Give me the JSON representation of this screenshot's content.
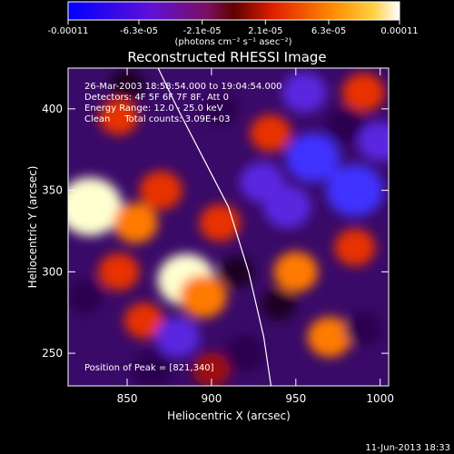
{
  "colorbar": {
    "tick_labels": [
      "-0.00011",
      "-6.3e-05",
      "-2.1e-05",
      "2.1e-05",
      "6.3e-05",
      "0.00011"
    ],
    "tick_values": [
      -0.00011,
      -6.3e-05,
      -2.1e-05,
      2.1e-05,
      6.3e-05,
      0.00011
    ],
    "range": [
      -0.00011,
      0.00011
    ],
    "units_label": "(photons cm⁻² s⁻¹ asec⁻²)",
    "colors": [
      "#1010ff",
      "#7a10e0",
      "#b01070",
      "#d82010",
      "#ff6a00",
      "#ffb000",
      "#ffffff"
    ]
  },
  "annotations": {
    "time_range": "26-Mar-2003 18:58:54.000 to 19:04:54.000",
    "detectors": "Detectors: 4F 5F 6F 7F 8F, Att 0",
    "energy_range": "Energy Range: 12.0 - 25.0 keV",
    "method": "Clean     Total counts: 3.09E+03",
    "peak": "Position of Peak = [821,340]"
  },
  "footer_date": "11-Jun-2013 18:33",
  "chart_data": {
    "type": "heatmap",
    "title": "Reconstructed RHESSI Image",
    "xlabel": "Heliocentric X (arcsec)",
    "ylabel": "Heliocentric Y (arcsec)",
    "xlim": [
      815,
      1005
    ],
    "ylim": [
      230,
      425
    ],
    "x_ticks": [
      850,
      900,
      950,
      1000
    ],
    "y_ticks": [
      250,
      300,
      350,
      400
    ],
    "x_tick_labels": [
      "850",
      "900",
      "950",
      "1000"
    ],
    "y_tick_labels": [
      "250",
      "300",
      "350",
      "400"
    ],
    "peak_position": [
      821,
      340
    ],
    "limb_curve": {
      "x": [
        866,
        880,
        895,
        910,
        922,
        931,
        936
      ],
      "y": [
        430,
        400,
        370,
        340,
        300,
        260,
        225
      ]
    },
    "blobs": [
      {
        "x": 828,
        "y": 340,
        "v": 0.00011
      },
      {
        "x": 885,
        "y": 295,
        "v": 9e-05
      },
      {
        "x": 895,
        "y": 285,
        "v": 6e-05
      },
      {
        "x": 855,
        "y": 330,
        "v": 5e-05
      },
      {
        "x": 870,
        "y": 350,
        "v": 4.5e-05
      },
      {
        "x": 845,
        "y": 300,
        "v": 4e-05
      },
      {
        "x": 860,
        "y": 270,
        "v": 3.5e-05
      },
      {
        "x": 905,
        "y": 330,
        "v": 4e-05
      },
      {
        "x": 950,
        "y": 300,
        "v": 5e-05
      },
      {
        "x": 985,
        "y": 315,
        "v": 4e-05
      },
      {
        "x": 970,
        "y": 260,
        "v": 5e-05
      },
      {
        "x": 935,
        "y": 385,
        "v": 4e-05
      },
      {
        "x": 845,
        "y": 395,
        "v": 3.5e-05
      },
      {
        "x": 990,
        "y": 410,
        "v": 4.5e-05
      },
      {
        "x": 900,
        "y": 240,
        "v": 3e-05
      },
      {
        "x": 960,
        "y": 370,
        "v": -8e-05
      },
      {
        "x": 985,
        "y": 350,
        "v": -9e-05
      },
      {
        "x": 945,
        "y": 340,
        "v": -6e-05
      },
      {
        "x": 930,
        "y": 355,
        "v": -5e-05
      },
      {
        "x": 955,
        "y": 410,
        "v": -5e-05
      },
      {
        "x": 980,
        "y": 390,
        "v": -4e-05
      },
      {
        "x": 1000,
        "y": 380,
        "v": -5e-05
      },
      {
        "x": 880,
        "y": 260,
        "v": -5e-05
      },
      {
        "x": 865,
        "y": 240,
        "v": -4e-05
      },
      {
        "x": 920,
        "y": 250,
        "v": -4e-05
      },
      {
        "x": 990,
        "y": 265,
        "v": -3e-05
      },
      {
        "x": 940,
        "y": 280,
        "v": -2e-05
      },
      {
        "x": 915,
        "y": 300,
        "v": -2e-05
      },
      {
        "x": 825,
        "y": 285,
        "v": -3e-05
      },
      {
        "x": 850,
        "y": 415,
        "v": -2e-05
      },
      {
        "x": 905,
        "y": 400,
        "v": -3e-05
      }
    ]
  }
}
